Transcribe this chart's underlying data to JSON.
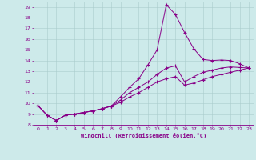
{
  "xlabel": "Windchill (Refroidissement éolien,°C)",
  "bg_color": "#cdeaea",
  "grid_color": "#aacccc",
  "line_color": "#880088",
  "x_values": [
    0,
    1,
    2,
    3,
    4,
    5,
    6,
    7,
    8,
    9,
    10,
    11,
    12,
    13,
    14,
    15,
    16,
    17,
    18,
    19,
    20,
    21,
    22,
    23
  ],
  "line1": [
    9.8,
    8.9,
    8.4,
    8.9,
    9.0,
    9.15,
    9.3,
    9.5,
    9.75,
    10.6,
    11.5,
    12.3,
    13.6,
    15.0,
    19.2,
    18.3,
    16.6,
    15.1,
    14.1,
    14.0,
    14.05,
    14.0,
    13.7,
    13.3
  ],
  "line2": [
    9.8,
    8.9,
    8.4,
    8.9,
    9.0,
    9.15,
    9.3,
    9.5,
    9.75,
    10.3,
    11.0,
    11.5,
    12.0,
    12.7,
    13.3,
    13.5,
    12.0,
    12.5,
    12.9,
    13.1,
    13.3,
    13.4,
    13.35,
    13.3
  ],
  "line3": [
    9.8,
    8.9,
    8.4,
    8.9,
    9.0,
    9.15,
    9.3,
    9.5,
    9.75,
    10.1,
    10.6,
    11.0,
    11.5,
    12.0,
    12.3,
    12.5,
    11.7,
    11.9,
    12.2,
    12.5,
    12.7,
    12.9,
    13.1,
    13.3
  ],
  "ylim": [
    8.0,
    19.5
  ],
  "xlim": [
    -0.5,
    23.5
  ],
  "yticks": [
    8,
    9,
    10,
    11,
    12,
    13,
    14,
    15,
    16,
    17,
    18,
    19
  ],
  "xticks": [
    0,
    1,
    2,
    3,
    4,
    5,
    6,
    7,
    8,
    9,
    10,
    11,
    12,
    13,
    14,
    15,
    16,
    17,
    18,
    19,
    20,
    21,
    22,
    23
  ]
}
